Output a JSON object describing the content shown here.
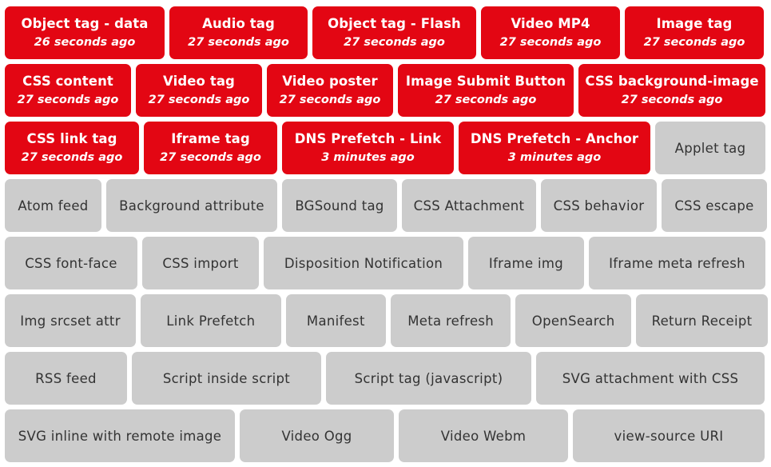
{
  "colors": {
    "hit": "#e30613",
    "miss": "#cccccc",
    "hit_text": "#ffffff",
    "miss_text": "#333333"
  },
  "rows": [
    {
      "tiles": [
        {
          "name": "Object tag - data",
          "time": "26 seconds ago",
          "status": "hit"
        },
        {
          "name": "Audio tag",
          "time": "27 seconds ago",
          "status": "hit"
        },
        {
          "name": "Object tag - Flash",
          "time": "27 seconds ago",
          "status": "hit"
        },
        {
          "name": "Video MP4",
          "time": "27 seconds ago",
          "status": "hit"
        },
        {
          "name": "Image tag",
          "time": "27 seconds ago",
          "status": "hit"
        }
      ]
    },
    {
      "tiles": [
        {
          "name": "CSS content",
          "time": "27 seconds ago",
          "status": "hit"
        },
        {
          "name": "Video tag",
          "time": "27 seconds ago",
          "status": "hit"
        },
        {
          "name": "Video poster",
          "time": "27 seconds ago",
          "status": "hit"
        },
        {
          "name": "Image Submit Button",
          "time": "27 seconds ago",
          "status": "hit"
        },
        {
          "name": "CSS background-image",
          "time": "27 seconds ago",
          "status": "hit"
        }
      ]
    },
    {
      "tiles": [
        {
          "name": "CSS link tag",
          "time": "27 seconds ago",
          "status": "hit"
        },
        {
          "name": "Iframe tag",
          "time": "27 seconds ago",
          "status": "hit"
        },
        {
          "name": "DNS Prefetch - Link",
          "time": "3 minutes ago",
          "status": "hit"
        },
        {
          "name": "DNS Prefetch - Anchor",
          "time": "3 minutes ago",
          "status": "hit"
        },
        {
          "name": "Applet tag",
          "status": "miss"
        }
      ]
    },
    {
      "tiles": [
        {
          "name": "Atom feed",
          "status": "miss"
        },
        {
          "name": "Background attribute",
          "status": "miss"
        },
        {
          "name": "BGSound tag",
          "status": "miss"
        },
        {
          "name": "CSS Attachment",
          "status": "miss"
        },
        {
          "name": "CSS behavior",
          "status": "miss"
        },
        {
          "name": "CSS escape",
          "status": "miss"
        }
      ]
    },
    {
      "tiles": [
        {
          "name": "CSS font-face",
          "status": "miss"
        },
        {
          "name": "CSS import",
          "status": "miss"
        },
        {
          "name": "Disposition Notification",
          "status": "miss"
        },
        {
          "name": "Iframe img",
          "status": "miss"
        },
        {
          "name": "Iframe meta refresh",
          "status": "miss"
        }
      ]
    },
    {
      "tiles": [
        {
          "name": "Img srcset attr",
          "status": "miss"
        },
        {
          "name": "Link Prefetch",
          "status": "miss"
        },
        {
          "name": "Manifest",
          "status": "miss"
        },
        {
          "name": "Meta refresh",
          "status": "miss"
        },
        {
          "name": "OpenSearch",
          "status": "miss"
        },
        {
          "name": "Return Receipt",
          "status": "miss"
        }
      ]
    },
    {
      "tiles": [
        {
          "name": "RSS feed",
          "status": "miss"
        },
        {
          "name": "Script inside script",
          "status": "miss"
        },
        {
          "name": "Script tag (javascript)",
          "status": "miss"
        },
        {
          "name": "SVG attachment with CSS",
          "status": "miss"
        }
      ]
    },
    {
      "tiles": [
        {
          "name": "SVG inline with remote image",
          "status": "miss"
        },
        {
          "name": "Video Ogg",
          "status": "miss"
        },
        {
          "name": "Video Webm",
          "status": "miss"
        },
        {
          "name": "view-source URI",
          "status": "miss"
        }
      ]
    }
  ]
}
